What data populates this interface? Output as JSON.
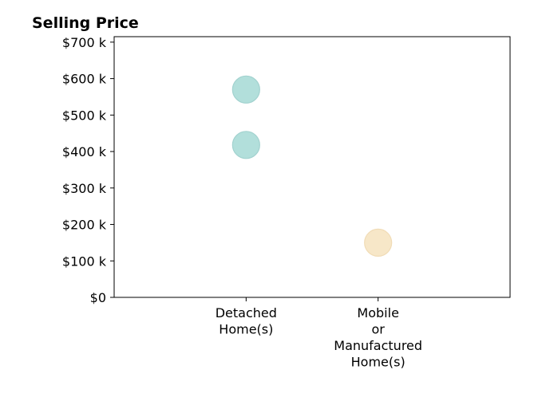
{
  "chart_data": {
    "type": "scatter",
    "title": "Selling Price",
    "xlabel": "",
    "ylabel": "",
    "categories": [
      [
        "Detached",
        "Home(s)"
      ],
      [
        "Mobile",
        "or",
        "Manufactured",
        "Home(s)"
      ]
    ],
    "xlim": [
      -0.5,
      2.5
    ],
    "ylim": [
      0,
      715000
    ],
    "y_ticks": [
      {
        "value": 0,
        "label": "$0"
      },
      {
        "value": 100000,
        "label": "$100 k"
      },
      {
        "value": 200000,
        "label": "$200 k"
      },
      {
        "value": 300000,
        "label": "$300 k"
      },
      {
        "value": 400000,
        "label": "$400 k"
      },
      {
        "value": 500000,
        "label": "$500 k"
      },
      {
        "value": 600000,
        "label": "$600 k"
      },
      {
        "value": 700000,
        "label": "$700 k"
      }
    ],
    "grid": false,
    "legend": "none",
    "points": [
      {
        "category": "Detached Home(s)",
        "x": 0.5,
        "y": 570000,
        "fill": "#b2dfdb",
        "stroke": "#a2d2cf"
      },
      {
        "category": "Detached Home(s)",
        "x": 0.5,
        "y": 418000,
        "fill": "#b2dfdb",
        "stroke": "#a2d2cf"
      },
      {
        "category": "Mobile or Manufactured Home(s)",
        "x": 1.5,
        "y": 150000,
        "fill": "#f7e7c8",
        "stroke": "#f1dcb6"
      }
    ]
  }
}
